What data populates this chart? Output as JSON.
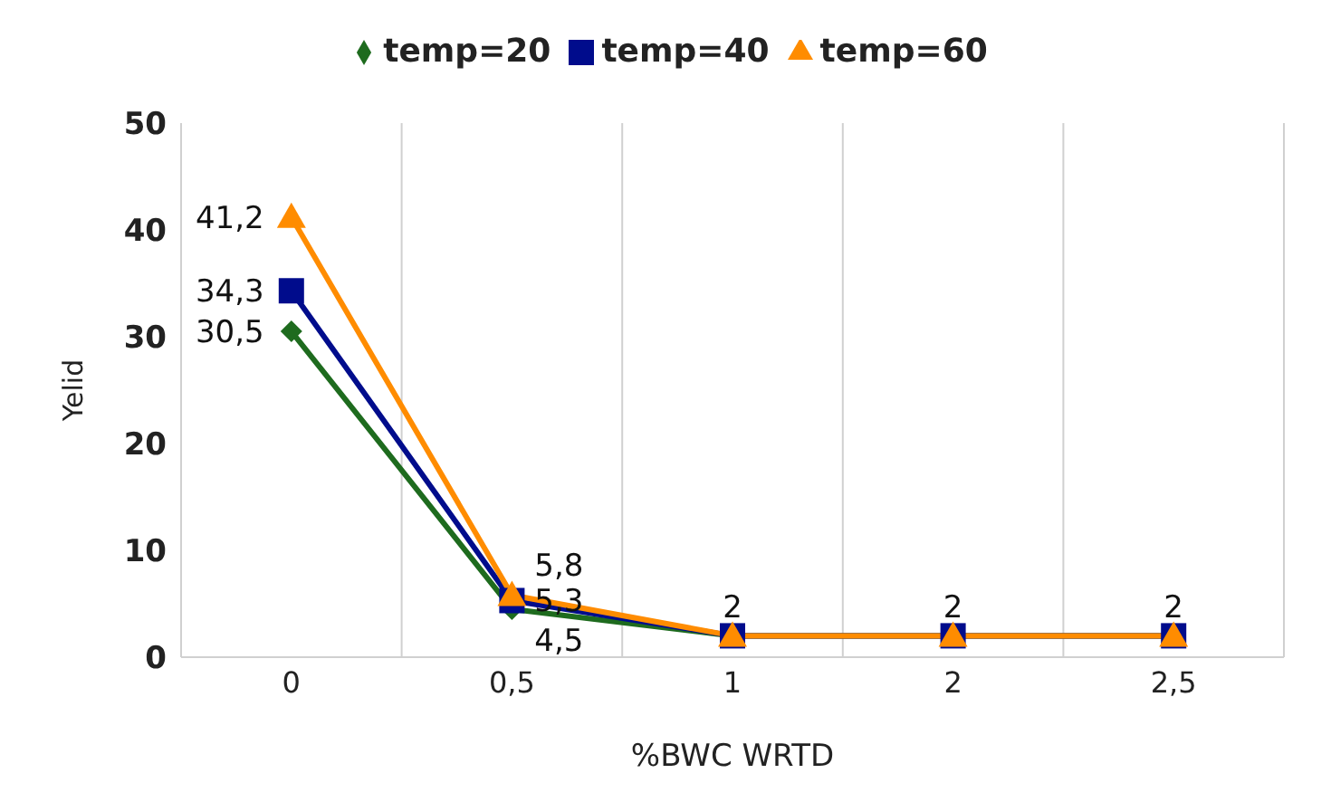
{
  "chart_data": {
    "type": "line",
    "xlabel": "%BWC WRTD",
    "ylabel": "Yelid",
    "categories": [
      "0",
      "0,5",
      "1",
      "2",
      "2,5"
    ],
    "series": [
      {
        "name": "temp=20",
        "color": "#1e6b1e",
        "marker": "diamond",
        "values": [
          30.5,
          4.5,
          2,
          2,
          2
        ],
        "value_labels": [
          "30,5",
          "4,5",
          null,
          null,
          null
        ]
      },
      {
        "name": "temp=40",
        "color": "#000c8c",
        "marker": "square",
        "values": [
          34.3,
          5.3,
          2,
          2,
          2
        ],
        "value_labels": [
          "34,3",
          "5,3",
          null,
          null,
          null
        ]
      },
      {
        "name": "temp=60",
        "color": "#ff8c00",
        "marker": "triangle",
        "values": [
          41.2,
          5.8,
          2,
          2,
          2
        ],
        "value_labels": [
          "41,2",
          "5,8",
          "2",
          "2",
          "2"
        ]
      }
    ],
    "ylim": [
      0,
      50
    ],
    "yticks": [
      0,
      10,
      20,
      30,
      40,
      50
    ],
    "grid": "x",
    "legend": "top"
  }
}
